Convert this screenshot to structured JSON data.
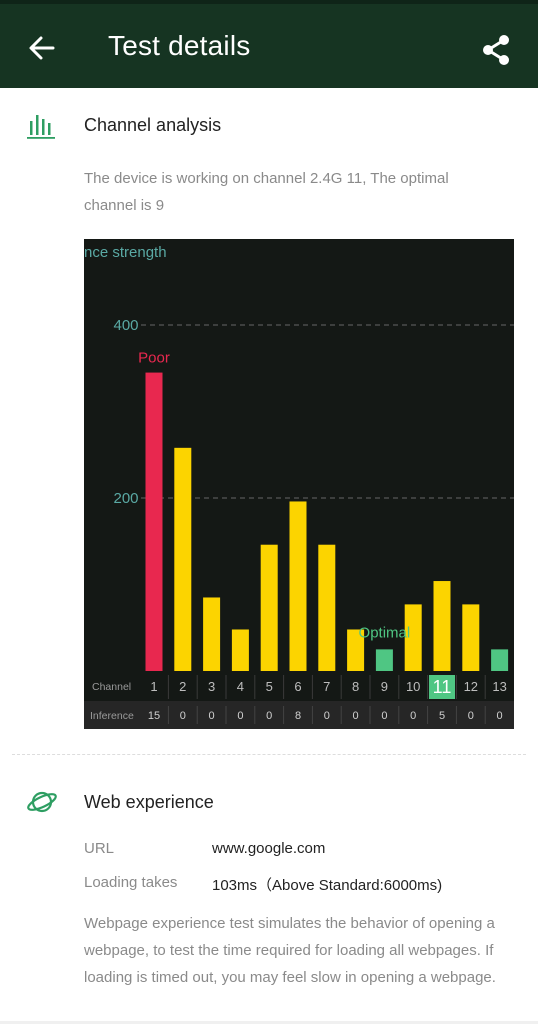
{
  "header": {
    "title": "Test details",
    "back_icon": "arrow-left-icon",
    "share_icon": "share-icon",
    "background": "#163422"
  },
  "channel_analysis": {
    "title": "Channel analysis",
    "icon": "bar-chart-icon",
    "description": "The device is working on channel 2.4G 11, The optimal channel is 9"
  },
  "chart_data": {
    "type": "bar",
    "ylabel": "nce strength",
    "ylim": [
      0,
      400
    ],
    "y_ticks": [
      200,
      400
    ],
    "grid": true,
    "categories": [
      "1",
      "2",
      "3",
      "4",
      "5",
      "6",
      "7",
      "8",
      "9",
      "10",
      "11",
      "12",
      "13"
    ],
    "values": [
      345,
      258,
      85,
      48,
      146,
      196,
      146,
      48,
      25,
      77,
      104,
      77,
      25
    ],
    "bar_status": [
      "poor",
      "normal",
      "normal",
      "normal",
      "normal",
      "normal",
      "normal",
      "normal",
      "optimal",
      "normal",
      "normal",
      "normal",
      "optimal"
    ],
    "row_labels": {
      "channel": "Channel",
      "inference": "Inference"
    },
    "inference": [
      "15",
      "0",
      "0",
      "0",
      "0",
      "8",
      "0",
      "0",
      "0",
      "0",
      "5",
      "0",
      "0"
    ],
    "current_channel": "11",
    "annotations": [
      {
        "text": "Poor",
        "channel": "1"
      },
      {
        "text": "Optimal",
        "channel": "9"
      }
    ],
    "colors": {
      "poor": "#e8284f",
      "normal": "#fcd400",
      "optimal": "#4fc683",
      "axis_text": "#5aa9a4",
      "background": "#141815"
    }
  },
  "web_experience": {
    "title": "Web experience",
    "icon": "planet-icon",
    "url_label": "URL",
    "url_value": "www.google.com",
    "loading_label": "Loading takes",
    "loading_value": "103ms（Above Standard:6000ms)",
    "description": "Webpage experience test simulates the behavior of opening a webpage, to test the time required for loading all webpages. If loading is timed out, you may feel slow in opening a webpage."
  }
}
